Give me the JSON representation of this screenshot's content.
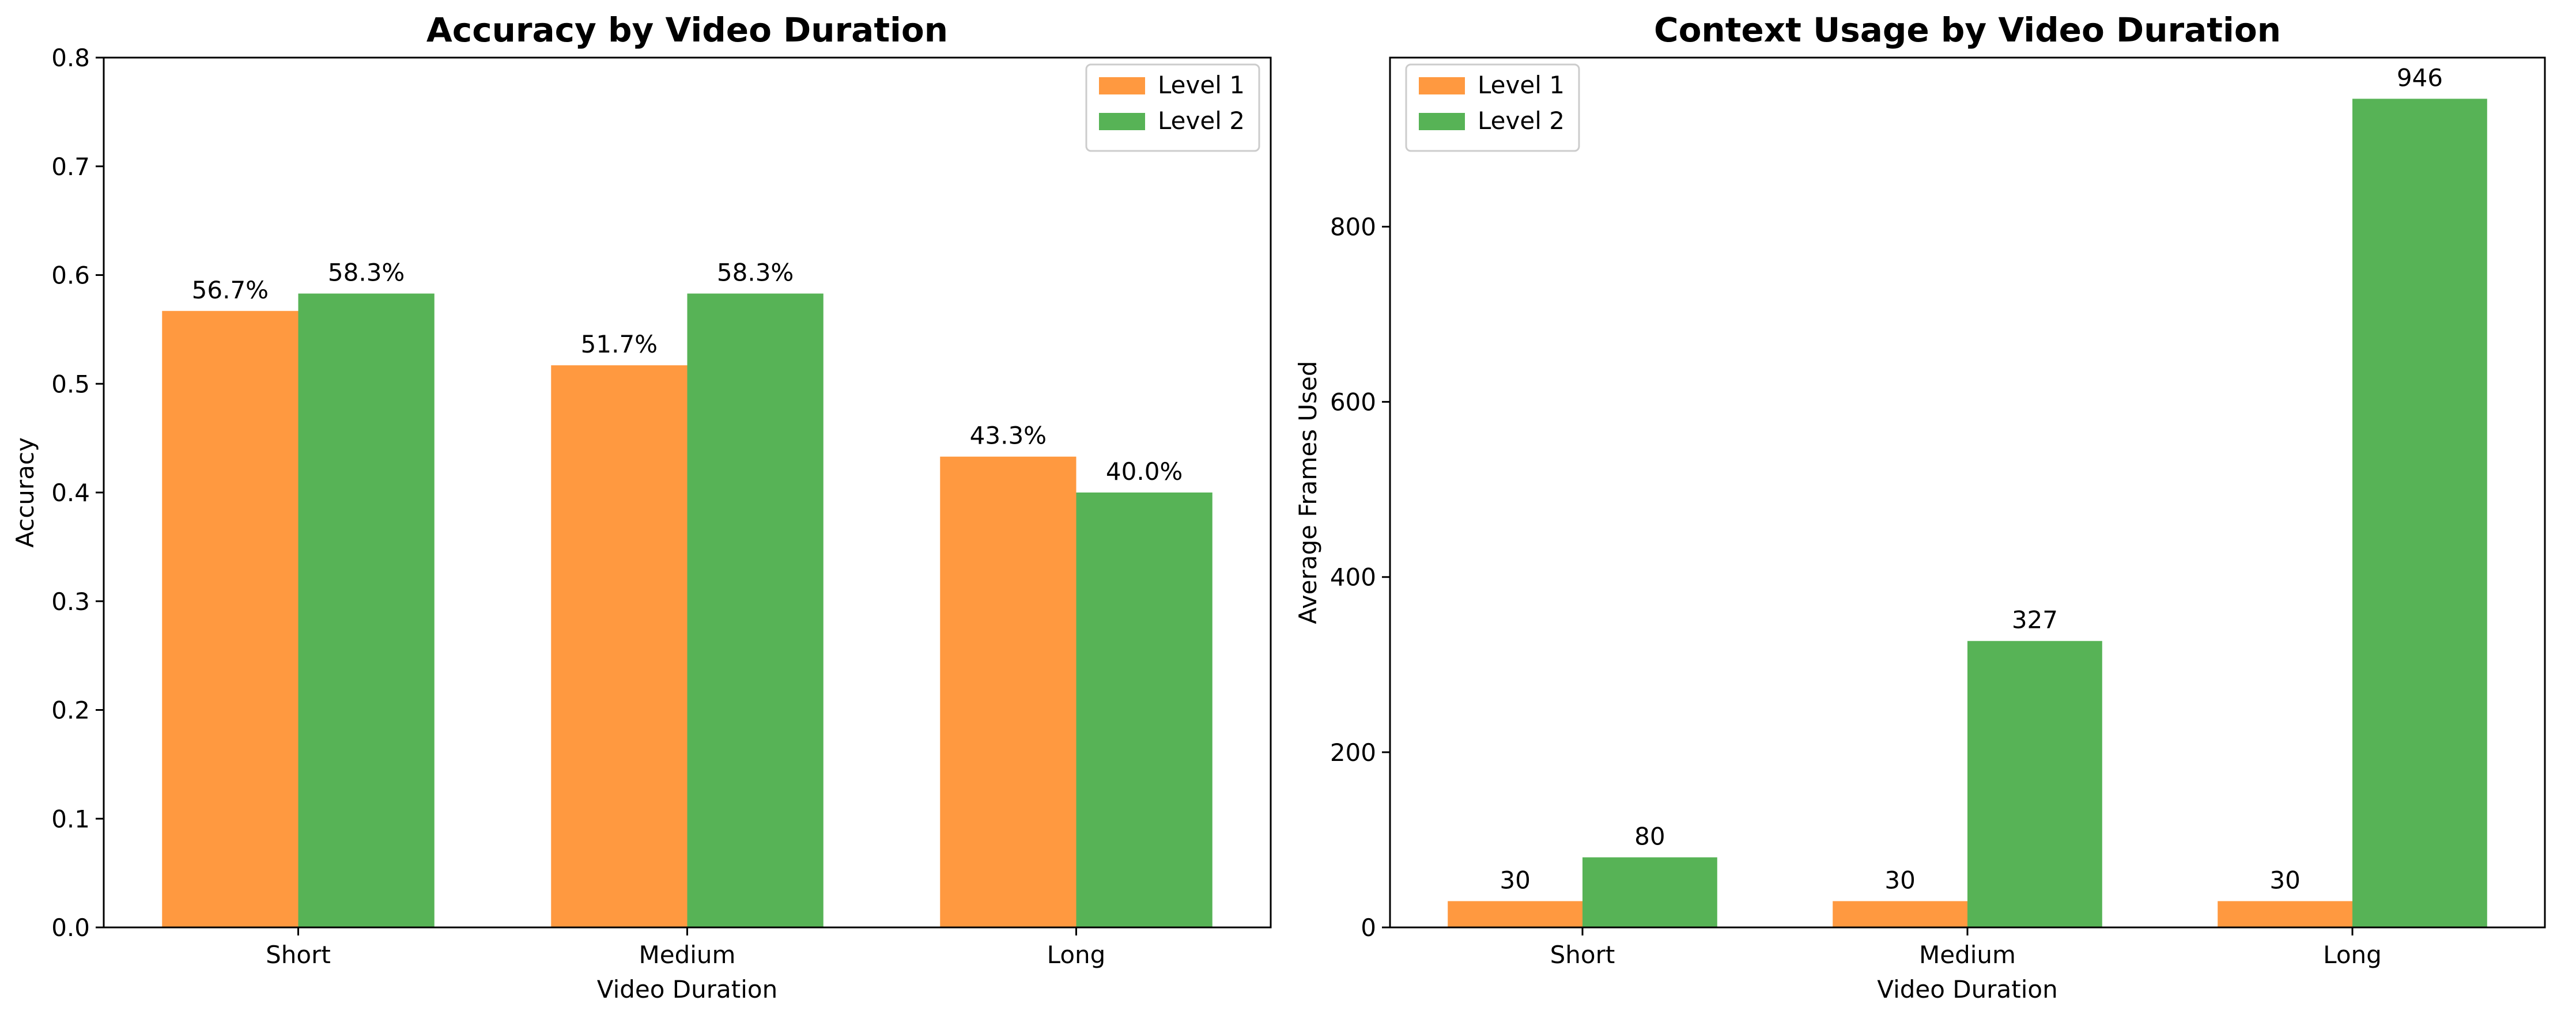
{
  "colors": {
    "level1": "#FF9940",
    "level2": "#57B356"
  },
  "chart_data": [
    {
      "type": "bar",
      "title": "Accuracy by Video Duration",
      "xlabel": "Video Duration",
      "ylabel": "Accuracy",
      "categories": [
        "Short",
        "Medium",
        "Long"
      ],
      "ylim": [
        0,
        0.8
      ],
      "yticks": [
        "0.0",
        "0.1",
        "0.2",
        "0.3",
        "0.4",
        "0.5",
        "0.6",
        "0.7",
        "0.8"
      ],
      "ytick_values": [
        0,
        0.1,
        0.2,
        0.3,
        0.4,
        0.5,
        0.6,
        0.7,
        0.8
      ],
      "legend_position": "top-right",
      "series": [
        {
          "name": "Level 1",
          "values": [
            0.567,
            0.517,
            0.433
          ],
          "labels": [
            "56.7%",
            "51.7%",
            "43.3%"
          ]
        },
        {
          "name": "Level 2",
          "values": [
            0.583,
            0.583,
            0.4
          ],
          "labels": [
            "58.3%",
            "58.3%",
            "40.0%"
          ]
        }
      ]
    },
    {
      "type": "bar",
      "title": "Context Usage by Video Duration",
      "xlabel": "Video Duration",
      "ylabel": "Average Frames Used",
      "categories": [
        "Short",
        "Medium",
        "Long"
      ],
      "ylim": [
        0,
        993
      ],
      "yticks": [
        "0",
        "200",
        "400",
        "600",
        "800"
      ],
      "ytick_values": [
        0,
        200,
        400,
        600,
        800
      ],
      "legend_position": "top-left",
      "series": [
        {
          "name": "Level 1",
          "values": [
            30,
            30,
            30
          ],
          "labels": [
            "30",
            "30",
            "30"
          ]
        },
        {
          "name": "Level 2",
          "values": [
            80,
            327,
            946
          ],
          "labels": [
            "80",
            "327",
            "946"
          ]
        }
      ]
    }
  ]
}
